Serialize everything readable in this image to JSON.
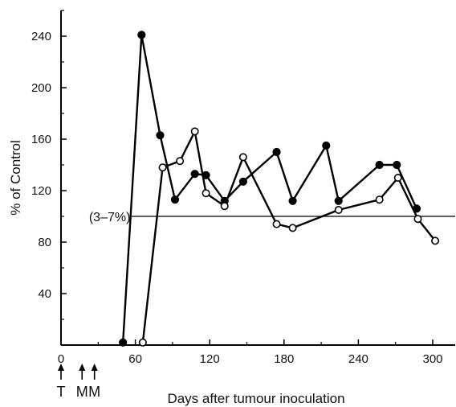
{
  "chart_data": {
    "type": "line",
    "title": "",
    "xlabel": "Days after tumour inoculation",
    "ylabel": "% of Control",
    "xlim": [
      0,
      320
    ],
    "ylim": [
      0,
      260
    ],
    "x_ticks": [
      0,
      60,
      120,
      180,
      240,
      300
    ],
    "y_ticks": [
      40,
      80,
      120,
      160,
      200,
      240
    ],
    "grid": false,
    "reference_line": {
      "y": 100,
      "label": "(3–7%)"
    },
    "series": [
      {
        "marker": "filled-circle",
        "color": "#000000",
        "points": [
          {
            "x": 50,
            "y": 2
          },
          {
            "x": 65,
            "y": 241
          },
          {
            "x": 80,
            "y": 163
          },
          {
            "x": 92,
            "y": 113
          },
          {
            "x": 108,
            "y": 133
          },
          {
            "x": 117,
            "y": 132
          },
          {
            "x": 132,
            "y": 112
          },
          {
            "x": 147,
            "y": 127
          },
          {
            "x": 174,
            "y": 150
          },
          {
            "x": 187,
            "y": 112
          },
          {
            "x": 214,
            "y": 155
          },
          {
            "x": 224,
            "y": 112
          },
          {
            "x": 257,
            "y": 140
          },
          {
            "x": 271,
            "y": 140
          },
          {
            "x": 287,
            "y": 106
          }
        ]
      },
      {
        "marker": "open-circle",
        "color": "#000000",
        "points": [
          {
            "x": 66,
            "y": 2
          },
          {
            "x": 82,
            "y": 138
          },
          {
            "x": 96,
            "y": 143
          },
          {
            "x": 108,
            "y": 166
          },
          {
            "x": 117,
            "y": 118
          },
          {
            "x": 132,
            "y": 108
          },
          {
            "x": 147,
            "y": 146
          },
          {
            "x": 174,
            "y": 94
          },
          {
            "x": 187,
            "y": 91
          },
          {
            "x": 224,
            "y": 105
          },
          {
            "x": 257,
            "y": 113
          },
          {
            "x": 272,
            "y": 130
          },
          {
            "x": 288,
            "y": 98
          },
          {
            "x": 302,
            "y": 81
          }
        ]
      }
    ],
    "arrows": [
      {
        "x": 0,
        "label": "T"
      },
      {
        "x": 17,
        "label": "M"
      },
      {
        "x": 27,
        "label": "M"
      }
    ]
  },
  "icons": {
    "arrow": "up-arrow-icon"
  }
}
